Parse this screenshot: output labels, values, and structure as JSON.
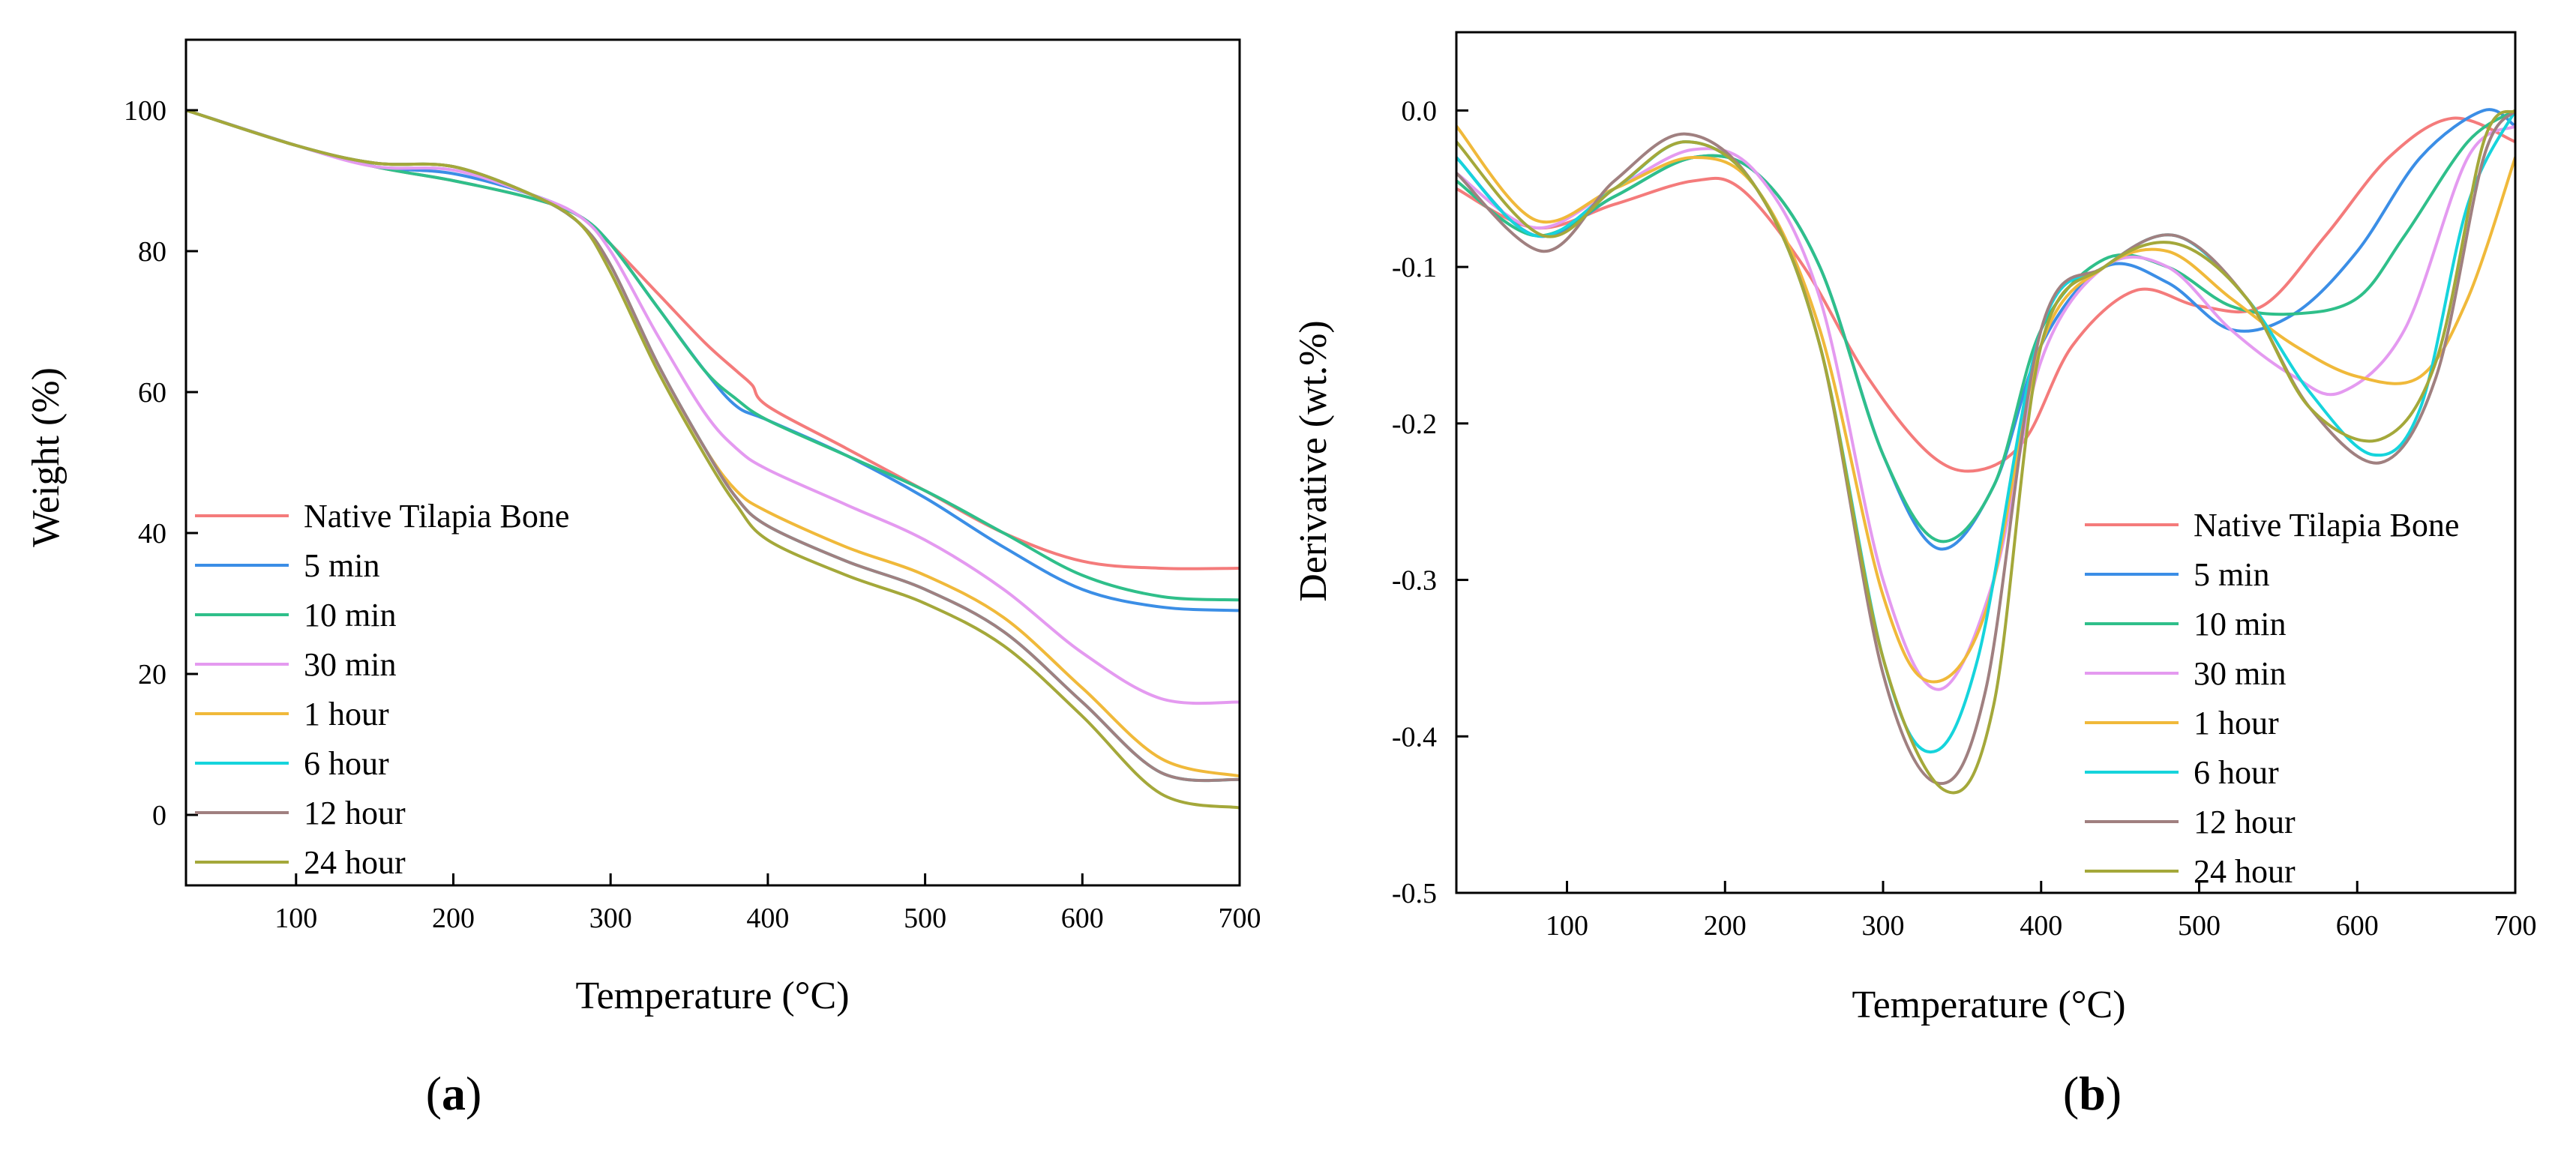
{
  "figure": {
    "series_colors": {
      "Native Tilapia Bone": "#f47b7b",
      "5 min": "#3b8ee6",
      "10 min": "#2fbf8a",
      "30 min": "#e49af0",
      "1 hour": "#f0b93a",
      "6 hour": "#16d4dc",
      "12 hour": "#a08080",
      "24 hour": "#a4a83a"
    }
  },
  "chart_data": [
    {
      "type": "line",
      "panel_label": "(a)",
      "panel_label_parts": {
        "open": "(",
        "letter": "a",
        "close": ")"
      },
      "title": "",
      "xlabel": "Temperature (°C)",
      "ylabel": "Weight (%)",
      "xlim": [
        30,
        700
      ],
      "ylim": [
        -10,
        110
      ],
      "xticks": [
        100,
        200,
        300,
        400,
        500,
        600,
        700
      ],
      "xtick_labels": [
        "100",
        "200",
        "300",
        "400",
        "500",
        "600",
        "700"
      ],
      "yticks": [
        0,
        20,
        40,
        60,
        80,
        100
      ],
      "ytick_labels": [
        "0",
        "20",
        "40",
        "60",
        "80",
        "100"
      ],
      "legend_position": "bottom-left",
      "series": [
        {
          "name": "Native Tilapia Bone",
          "color": "#f47b7b",
          "x": [
            30,
            100,
            150,
            200,
            250,
            280,
            300,
            330,
            360,
            380,
            390,
            400,
            450,
            500,
            550,
            600,
            650,
            700
          ],
          "y": [
            100,
            95,
            92,
            90,
            87.5,
            85,
            81,
            74,
            67,
            63,
            61,
            58,
            52,
            46,
            40,
            36,
            35,
            35
          ]
        },
        {
          "name": "5 min",
          "color": "#3b8ee6",
          "x": [
            30,
            100,
            150,
            200,
            250,
            280,
            300,
            330,
            360,
            380,
            400,
            450,
            500,
            550,
            600,
            650,
            700
          ],
          "y": [
            100,
            95,
            92,
            91,
            88,
            85,
            81,
            72,
            63,
            58,
            56,
            51,
            45,
            38,
            32,
            29.5,
            29
          ]
        },
        {
          "name": "10 min",
          "color": "#2fbf8a",
          "x": [
            30,
            100,
            150,
            200,
            250,
            280,
            300,
            330,
            360,
            380,
            400,
            450,
            500,
            550,
            600,
            650,
            700
          ],
          "y": [
            100,
            95,
            92,
            90,
            87.5,
            85,
            81,
            72,
            63,
            59,
            56,
            51,
            46,
            40,
            34,
            31,
            30.5
          ]
        },
        {
          "name": "30 min",
          "color": "#e49af0",
          "x": [
            30,
            100,
            150,
            200,
            250,
            280,
            300,
            330,
            360,
            380,
            400,
            450,
            500,
            550,
            600,
            650,
            700
          ],
          "y": [
            100,
            95,
            92,
            91.5,
            88,
            85,
            80,
            68,
            57,
            52,
            49,
            44,
            39,
            32,
            23,
            16.5,
            16
          ]
        },
        {
          "name": "1 hour",
          "color": "#f0b93a",
          "x": [
            30,
            100,
            150,
            200,
            250,
            280,
            300,
            330,
            360,
            380,
            400,
            450,
            500,
            550,
            600,
            650,
            700
          ],
          "y": [
            100,
            95,
            92.5,
            92,
            88,
            84,
            78,
            64,
            52,
            46,
            43,
            38,
            34,
            28,
            18,
            8,
            5.5
          ]
        },
        {
          "name": "6 hour",
          "color": "#16d4dc",
          "x": [
            30,
            100,
            150,
            200,
            250,
            280,
            300,
            330,
            360,
            380,
            400,
            450,
            500,
            550,
            600,
            650,
            700
          ],
          "y": [
            100,
            95,
            92.5,
            92,
            88,
            84,
            78,
            64,
            52,
            45,
            41,
            36,
            32,
            26,
            16,
            6,
            5
          ]
        },
        {
          "name": "12 hour",
          "color": "#a08080",
          "x": [
            30,
            100,
            150,
            200,
            250,
            280,
            300,
            330,
            360,
            380,
            400,
            450,
            500,
            550,
            600,
            650,
            700
          ],
          "y": [
            100,
            95,
            92.5,
            92,
            88,
            84,
            78,
            64,
            52,
            45,
            41,
            36,
            32,
            26,
            16,
            6,
            5
          ]
        },
        {
          "name": "24 hour",
          "color": "#a4a83a",
          "x": [
            30,
            100,
            150,
            200,
            250,
            280,
            300,
            330,
            360,
            380,
            400,
            450,
            500,
            550,
            600,
            650,
            700
          ],
          "y": [
            100,
            95,
            92.5,
            92,
            88,
            84,
            77,
            63,
            51,
            44,
            39,
            34,
            30,
            24,
            14,
            3,
            1
          ]
        }
      ]
    },
    {
      "type": "line",
      "panel_label": "(b)",
      "panel_label_parts": {
        "open": "(",
        "letter": "b",
        "close": ")"
      },
      "title": "",
      "xlabel": "Temperature (°C)",
      "ylabel": "Derivative (wt.%)",
      "xlim": [
        30,
        700
      ],
      "ylim": [
        -0.5,
        0.05
      ],
      "xticks": [
        100,
        200,
        300,
        400,
        500,
        600,
        700
      ],
      "xtick_labels": [
        "100",
        "200",
        "300",
        "400",
        "500",
        "600",
        "700"
      ],
      "yticks": [
        0.0,
        -0.1,
        -0.2,
        -0.3,
        -0.4,
        -0.5
      ],
      "ytick_labels": [
        "0.0",
        "-0.1",
        "-0.2",
        "-0.3",
        "-0.4",
        "-0.5"
      ],
      "legend_position": "bottom-right",
      "series": [
        {
          "name": "Native Tilapia Bone",
          "color": "#f47b7b",
          "x": [
            30,
            80,
            130,
            180,
            210,
            250,
            290,
            330,
            360,
            390,
            420,
            460,
            500,
            540,
            580,
            620,
            660,
            700
          ],
          "y": [
            -0.05,
            -0.075,
            -0.06,
            -0.045,
            -0.05,
            -0.1,
            -0.17,
            -0.22,
            -0.23,
            -0.21,
            -0.15,
            -0.115,
            -0.125,
            -0.125,
            -0.08,
            -0.03,
            -0.005,
            -0.02
          ]
        },
        {
          "name": "5 min",
          "color": "#3b8ee6",
          "x": [
            30,
            80,
            130,
            180,
            220,
            260,
            300,
            335,
            370,
            400,
            440,
            480,
            520,
            560,
            600,
            640,
            680,
            700
          ],
          "y": [
            -0.03,
            -0.08,
            -0.055,
            -0.03,
            -0.04,
            -0.1,
            -0.22,
            -0.28,
            -0.24,
            -0.15,
            -0.1,
            -0.11,
            -0.14,
            -0.13,
            -0.09,
            -0.03,
            0.0,
            -0.01
          ]
        },
        {
          "name": "10 min",
          "color": "#2fbf8a",
          "x": [
            30,
            80,
            130,
            180,
            220,
            260,
            300,
            335,
            370,
            400,
            440,
            480,
            520,
            560,
            600,
            630,
            670,
            700
          ],
          "y": [
            -0.045,
            -0.08,
            -0.055,
            -0.03,
            -0.04,
            -0.1,
            -0.22,
            -0.275,
            -0.24,
            -0.14,
            -0.095,
            -0.1,
            -0.125,
            -0.13,
            -0.12,
            -0.08,
            -0.02,
            0.0
          ]
        },
        {
          "name": "30 min",
          "color": "#e49af0",
          "x": [
            30,
            80,
            130,
            180,
            220,
            260,
            300,
            335,
            370,
            400,
            440,
            480,
            520,
            560,
            590,
            630,
            670,
            700
          ],
          "y": [
            -0.04,
            -0.075,
            -0.05,
            -0.025,
            -0.04,
            -0.12,
            -0.3,
            -0.37,
            -0.3,
            -0.16,
            -0.1,
            -0.1,
            -0.14,
            -0.17,
            -0.18,
            -0.14,
            -0.03,
            -0.01
          ]
        },
        {
          "name": "1 hour",
          "color": "#f0b93a",
          "x": [
            30,
            80,
            130,
            180,
            220,
            260,
            300,
            330,
            365,
            400,
            440,
            480,
            520,
            560,
            600,
            640,
            670,
            700
          ],
          "y": [
            -0.01,
            -0.07,
            -0.05,
            -0.03,
            -0.05,
            -0.14,
            -0.31,
            -0.365,
            -0.32,
            -0.15,
            -0.1,
            -0.09,
            -0.12,
            -0.15,
            -0.17,
            -0.17,
            -0.12,
            -0.03
          ]
        },
        {
          "name": "6 hour",
          "color": "#16d4dc",
          "x": [
            30,
            80,
            130,
            175,
            220,
            260,
            300,
            330,
            360,
            400,
            440,
            485,
            530,
            570,
            610,
            640,
            670,
            700
          ],
          "y": [
            -0.03,
            -0.08,
            -0.05,
            -0.02,
            -0.05,
            -0.15,
            -0.35,
            -0.41,
            -0.35,
            -0.14,
            -0.1,
            -0.08,
            -0.12,
            -0.18,
            -0.22,
            -0.19,
            -0.06,
            0.0
          ]
        },
        {
          "name": "12 hour",
          "color": "#a08080",
          "x": [
            30,
            85,
            130,
            175,
            220,
            260,
            300,
            335,
            365,
            400,
            440,
            485,
            530,
            570,
            615,
            650,
            680,
            700
          ],
          "y": [
            -0.04,
            -0.09,
            -0.045,
            -0.015,
            -0.05,
            -0.15,
            -0.36,
            -0.43,
            -0.37,
            -0.14,
            -0.1,
            -0.08,
            -0.12,
            -0.19,
            -0.225,
            -0.17,
            -0.03,
            0.0
          ]
        },
        {
          "name": "24 hour",
          "color": "#a4a83a",
          "x": [
            30,
            85,
            130,
            175,
            220,
            260,
            300,
            340,
            370,
            400,
            440,
            485,
            530,
            570,
            615,
            650,
            680,
            700
          ],
          "y": [
            -0.02,
            -0.08,
            -0.05,
            -0.02,
            -0.05,
            -0.15,
            -0.35,
            -0.435,
            -0.38,
            -0.15,
            -0.1,
            -0.085,
            -0.12,
            -0.19,
            -0.21,
            -0.16,
            -0.02,
            0.0
          ]
        }
      ]
    }
  ]
}
